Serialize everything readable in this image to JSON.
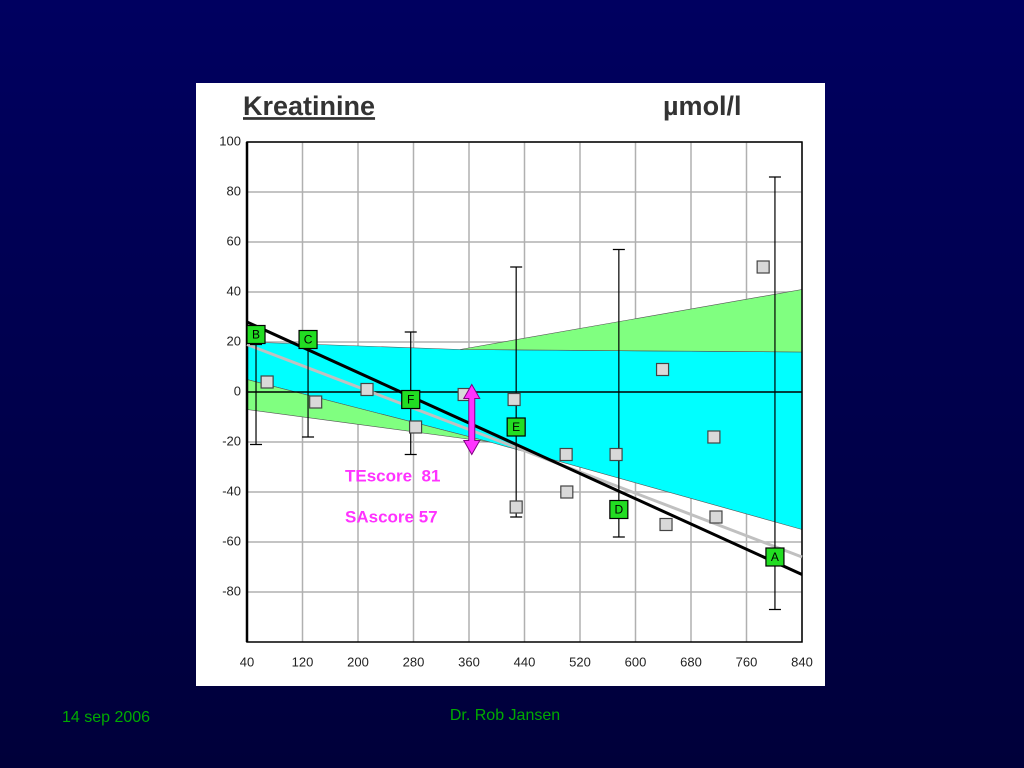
{
  "chart_data": {
    "type": "scatter",
    "title": "Kreatinine",
    "unit": "µmol/l",
    "xlim": [
      40,
      840
    ],
    "xticks": [
      40,
      120,
      200,
      280,
      360,
      440,
      520,
      600,
      680,
      760,
      840
    ],
    "ylim": [
      -100,
      100
    ],
    "yticks": [
      100,
      80,
      60,
      40,
      20,
      0,
      -20,
      -40,
      -60,
      -80
    ],
    "grid": true,
    "bands": [
      {
        "color": "#00ffff",
        "x": [
          40,
          347,
          840,
          840,
          390,
          40
        ],
        "y": [
          20,
          17,
          16,
          -55,
          -20,
          5
        ]
      },
      {
        "color": "#80ff80",
        "x": [
          40,
          390,
          40
        ],
        "y": [
          5,
          -20,
          -7
        ]
      },
      {
        "color": "#80ff80",
        "x": [
          347,
          840,
          840
        ],
        "y": [
          17,
          41,
          16
        ]
      }
    ],
    "lines": [
      {
        "color": "#c0c0c0",
        "x": [
          40,
          840
        ],
        "y": [
          19,
          -66
        ]
      },
      {
        "color": "#000000",
        "x": [
          40,
          840
        ],
        "y": [
          28,
          -73
        ]
      }
    ],
    "points": {
      "color": "#d9d9d9",
      "x": [
        69,
        139,
        213,
        283,
        353,
        425,
        428,
        500,
        501,
        572,
        639,
        644,
        713,
        716,
        784
      ],
      "y": [
        4,
        -4,
        1,
        -14,
        -1,
        -3,
        -46,
        -25,
        -40,
        -25,
        9,
        -53,
        -18,
        -50,
        50
      ]
    },
    "labeled_points": {
      "color": "#22dd22",
      "labels": [
        "B",
        "C",
        "F",
        "E",
        "D",
        "A"
      ],
      "x": [
        53,
        128,
        276,
        428,
        576,
        801
      ],
      "y": [
        23,
        21,
        -3,
        -14,
        -47,
        -66
      ],
      "low": [
        -21,
        -18,
        -25,
        -50,
        -58,
        -87
      ],
      "high": [
        19,
        21,
        24,
        50,
        57,
        86
      ]
    },
    "arrow": {
      "color": "#ff33ff",
      "x": 364,
      "y": [
        3,
        -25
      ]
    },
    "annotations": [
      "TEscore  81",
      "SAscore 57"
    ]
  },
  "footer": {
    "date": "14 sep 2006",
    "author": "Dr. Rob Jansen"
  }
}
